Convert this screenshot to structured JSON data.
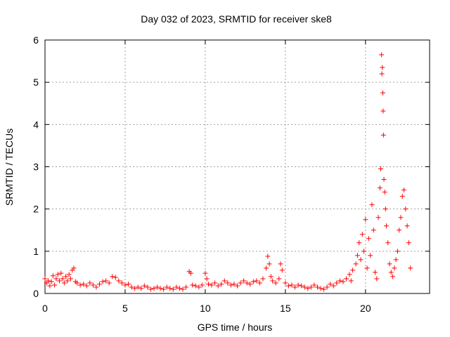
{
  "chart_data": {
    "type": "scatter",
    "title": "Day 032 of 2023, SRMTID for receiver ske8",
    "xlabel": "GPS time / hours",
    "ylabel": "SRMTID / TECUs",
    "xlim": [
      0,
      24
    ],
    "ylim": [
      0,
      6
    ],
    "xticks": [
      0,
      5,
      10,
      15,
      20
    ],
    "yticks": [
      0,
      1,
      2,
      3,
      4,
      5,
      6
    ],
    "xtick_labels": [
      "0",
      "5",
      "10",
      "15",
      "20"
    ],
    "ytick_labels": [
      "0",
      "1",
      "2",
      "3",
      "4",
      "5",
      "6"
    ],
    "grid": true,
    "marker": "+",
    "marker_color": "#ff0000",
    "series": [
      {
        "name": "SRMTID",
        "points": [
          [
            0.0,
            0.35
          ],
          [
            0.1,
            0.25
          ],
          [
            0.2,
            0.3
          ],
          [
            0.3,
            0.18
          ],
          [
            0.4,
            0.28
          ],
          [
            0.5,
            0.42
          ],
          [
            0.6,
            0.2
          ],
          [
            0.7,
            0.35
          ],
          [
            0.8,
            0.45
          ],
          [
            0.9,
            0.3
          ],
          [
            1.0,
            0.48
          ],
          [
            1.1,
            0.35
          ],
          [
            1.2,
            0.25
          ],
          [
            1.3,
            0.4
          ],
          [
            1.4,
            0.3
          ],
          [
            1.5,
            0.45
          ],
          [
            1.6,
            0.35
          ],
          [
            1.7,
            0.55
          ],
          [
            1.8,
            0.6
          ],
          [
            1.9,
            0.28
          ],
          [
            2.0,
            0.25
          ],
          [
            2.2,
            0.2
          ],
          [
            2.4,
            0.22
          ],
          [
            2.6,
            0.18
          ],
          [
            2.8,
            0.25
          ],
          [
            3.0,
            0.2
          ],
          [
            3.2,
            0.15
          ],
          [
            3.4,
            0.22
          ],
          [
            3.6,
            0.28
          ],
          [
            3.8,
            0.3
          ],
          [
            4.0,
            0.25
          ],
          [
            4.2,
            0.4
          ],
          [
            4.4,
            0.38
          ],
          [
            4.6,
            0.3
          ],
          [
            4.8,
            0.25
          ],
          [
            5.0,
            0.2
          ],
          [
            5.2,
            0.22
          ],
          [
            5.4,
            0.15
          ],
          [
            5.6,
            0.12
          ],
          [
            5.8,
            0.15
          ],
          [
            6.0,
            0.12
          ],
          [
            6.2,
            0.18
          ],
          [
            6.4,
            0.15
          ],
          [
            6.6,
            0.1
          ],
          [
            6.8,
            0.12
          ],
          [
            7.0,
            0.15
          ],
          [
            7.2,
            0.12
          ],
          [
            7.4,
            0.1
          ],
          [
            7.6,
            0.15
          ],
          [
            7.8,
            0.12
          ],
          [
            8.0,
            0.1
          ],
          [
            8.2,
            0.15
          ],
          [
            8.4,
            0.12
          ],
          [
            8.6,
            0.1
          ],
          [
            8.8,
            0.15
          ],
          [
            9.0,
            0.52
          ],
          [
            9.1,
            0.48
          ],
          [
            9.2,
            0.2
          ],
          [
            9.4,
            0.18
          ],
          [
            9.6,
            0.15
          ],
          [
            9.8,
            0.2
          ],
          [
            10.0,
            0.48
          ],
          [
            10.1,
            0.35
          ],
          [
            10.2,
            0.22
          ],
          [
            10.4,
            0.2
          ],
          [
            10.6,
            0.25
          ],
          [
            10.8,
            0.18
          ],
          [
            11.0,
            0.22
          ],
          [
            11.2,
            0.3
          ],
          [
            11.4,
            0.25
          ],
          [
            11.6,
            0.2
          ],
          [
            11.8,
            0.22
          ],
          [
            12.0,
            0.18
          ],
          [
            12.2,
            0.25
          ],
          [
            12.4,
            0.3
          ],
          [
            12.6,
            0.25
          ],
          [
            12.8,
            0.22
          ],
          [
            13.0,
            0.28
          ],
          [
            13.2,
            0.3
          ],
          [
            13.4,
            0.25
          ],
          [
            13.6,
            0.35
          ],
          [
            13.8,
            0.6
          ],
          [
            13.9,
            0.88
          ],
          [
            14.0,
            0.7
          ],
          [
            14.1,
            0.4
          ],
          [
            14.2,
            0.3
          ],
          [
            14.4,
            0.25
          ],
          [
            14.6,
            0.35
          ],
          [
            14.7,
            0.7
          ],
          [
            14.8,
            0.55
          ],
          [
            15.0,
            0.25
          ],
          [
            15.2,
            0.18
          ],
          [
            15.4,
            0.2
          ],
          [
            15.6,
            0.15
          ],
          [
            15.8,
            0.2
          ],
          [
            16.0,
            0.18
          ],
          [
            16.2,
            0.15
          ],
          [
            16.4,
            0.12
          ],
          [
            16.6,
            0.15
          ],
          [
            16.8,
            0.2
          ],
          [
            17.0,
            0.15
          ],
          [
            17.2,
            0.12
          ],
          [
            17.4,
            0.1
          ],
          [
            17.6,
            0.15
          ],
          [
            17.8,
            0.22
          ],
          [
            18.0,
            0.18
          ],
          [
            18.2,
            0.25
          ],
          [
            18.4,
            0.3
          ],
          [
            18.6,
            0.28
          ],
          [
            18.8,
            0.35
          ],
          [
            19.0,
            0.45
          ],
          [
            19.1,
            0.3
          ],
          [
            19.2,
            0.55
          ],
          [
            19.4,
            0.7
          ],
          [
            19.5,
            0.9
          ],
          [
            19.6,
            1.2
          ],
          [
            19.7,
            0.8
          ],
          [
            19.8,
            1.4
          ],
          [
            19.9,
            1.0
          ],
          [
            20.0,
            1.75
          ],
          [
            20.1,
            0.6
          ],
          [
            20.2,
            1.3
          ],
          [
            20.3,
            0.9
          ],
          [
            20.4,
            2.1
          ],
          [
            20.5,
            1.5
          ],
          [
            20.6,
            0.5
          ],
          [
            20.7,
            0.35
          ],
          [
            20.8,
            1.8
          ],
          [
            20.9,
            2.5
          ],
          [
            20.95,
            2.95
          ],
          [
            21.0,
            5.65
          ],
          [
            21.02,
            5.2
          ],
          [
            21.05,
            5.35
          ],
          [
            21.08,
            4.75
          ],
          [
            21.1,
            4.32
          ],
          [
            21.12,
            3.75
          ],
          [
            21.15,
            2.7
          ],
          [
            21.2,
            2.4
          ],
          [
            21.25,
            2.0
          ],
          [
            21.3,
            1.6
          ],
          [
            21.4,
            1.2
          ],
          [
            21.5,
            0.7
          ],
          [
            21.6,
            0.5
          ],
          [
            21.7,
            0.4
          ],
          [
            21.8,
            0.6
          ],
          [
            21.9,
            0.8
          ],
          [
            22.0,
            1.0
          ],
          [
            22.1,
            1.5
          ],
          [
            22.2,
            1.8
          ],
          [
            22.3,
            2.3
          ],
          [
            22.4,
            2.45
          ],
          [
            22.5,
            2.0
          ],
          [
            22.6,
            1.6
          ],
          [
            22.7,
            1.2
          ],
          [
            22.8,
            0.6
          ]
        ]
      }
    ]
  }
}
